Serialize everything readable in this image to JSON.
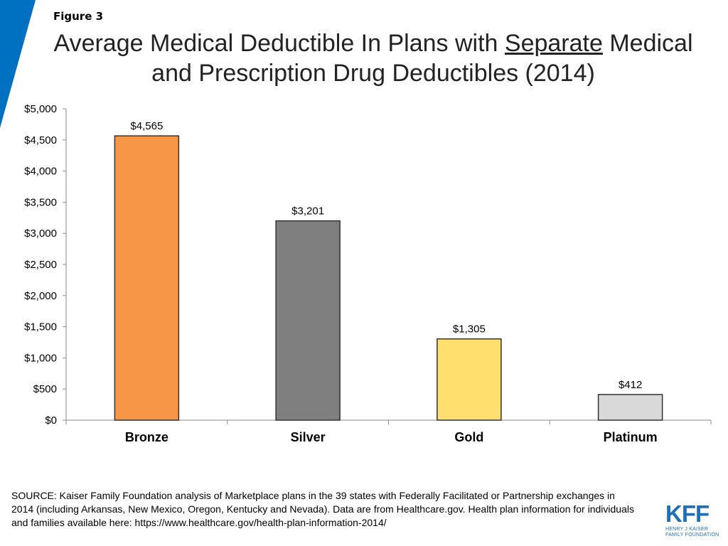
{
  "figure_label": "Figure 3",
  "title": {
    "before": "Average Medical Deductible In Plans with ",
    "emphasis": "Separate",
    "after": " Medical and Prescription Drug Deductibles (2014)"
  },
  "colors": {
    "brand": "#0070c0",
    "axis": "#888888"
  },
  "chart_data": {
    "type": "bar",
    "title": "Average Medical Deductible In Plans with Separate Medical and Prescription Drug Deductibles (2014)",
    "categories": [
      "Bronze",
      "Silver",
      "Gold",
      "Platinum"
    ],
    "values": [
      4565,
      3201,
      1305,
      412
    ],
    "value_labels": [
      "$4,565",
      "$3,201",
      "$1,305",
      "$412"
    ],
    "bar_colors": [
      "#f79646",
      "#7f7f7f",
      "#ffe06e",
      "#d9d9d9"
    ],
    "ylim": [
      0,
      5000
    ],
    "yticks": [
      0,
      500,
      1000,
      1500,
      2000,
      2500,
      3000,
      3500,
      4000,
      4500,
      5000
    ],
    "ytick_labels": [
      "$0",
      "$500",
      "$1,000",
      "$1,500",
      "$2,000",
      "$2,500",
      "$3,000",
      "$3,500",
      "$4,000",
      "$4,500",
      "$5,000"
    ],
    "xlabel": "",
    "ylabel": "",
    "grid": false,
    "legend": "none"
  },
  "source_text": "SOURCE: Kaiser Family Foundation analysis of Marketplace plans in the 39 states with Federally Facilitated or Partnership exchanges in 2014 (including Arkansas, New Mexico, Oregon, Kentucky and Nevada). Data are from Healthcare.gov. Health plan information for individuals and families available here: https://www.healthcare.gov/health-plan-information-2014/",
  "logo": {
    "letters": "KFF",
    "line1": "HENRY J KAISER",
    "line2": "FAMILY FOUNDATION"
  }
}
